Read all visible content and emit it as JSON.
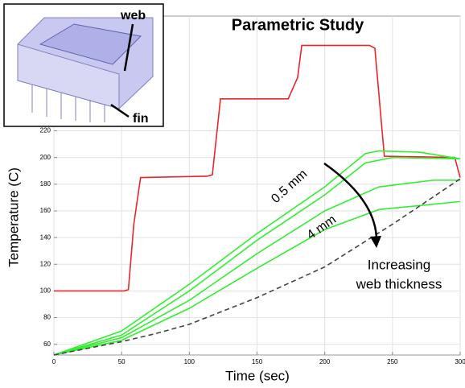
{
  "chart_data": {
    "type": "line",
    "title": "Parametric Study",
    "x_label": "Time (sec)",
    "y_label": "Temperature (C)",
    "xlim": [
      0,
      300
    ],
    "ylim": [
      52,
      306
    ],
    "xticks": [
      0,
      50,
      100,
      150,
      200,
      250,
      300
    ],
    "yticks": [
      60,
      80,
      100,
      120,
      140,
      160,
      180,
      200,
      220
    ],
    "grid": true,
    "series": [
      {
        "color": "#e8262b",
        "x": [
          0,
          52,
          55,
          59,
          64,
          113,
          117,
          123,
          173,
          180,
          183,
          233,
          237,
          244,
          296,
          300
        ],
        "values": [
          100,
          100,
          101,
          150,
          185,
          186,
          187,
          244,
          244,
          260,
          284,
          284,
          282,
          201,
          200,
          185
        ]
      },
      {
        "color": "#33ee33",
        "x": [
          0,
          50,
          100,
          150,
          200,
          230,
          240,
          270,
          300
        ],
        "values": [
          52,
          70,
          105,
          143,
          178,
          203,
          205,
          204,
          199
        ]
      },
      {
        "color": "#33ee33",
        "x": [
          0,
          50,
          100,
          150,
          200,
          230,
          250,
          300
        ],
        "values": [
          52,
          67,
          100,
          138,
          172,
          196,
          200,
          199
        ]
      },
      {
        "color": "#33ee33",
        "x": [
          0,
          50,
          100,
          150,
          200,
          240,
          280,
          300
        ],
        "values": [
          52,
          65,
          93,
          128,
          160,
          178,
          183,
          183
        ]
      },
      {
        "color": "#33ee33",
        "x": [
          0,
          50,
          100,
          150,
          200,
          240,
          300
        ],
        "values": [
          52,
          63,
          87,
          117,
          146,
          161,
          167
        ]
      },
      {
        "color": "#444444",
        "dashed": true,
        "x": [
          0,
          50,
          75,
          100,
          150,
          200,
          250,
          300
        ],
        "values": [
          52,
          62,
          68,
          75,
          95,
          118,
          150,
          184
        ]
      }
    ],
    "annotations": [
      "0.5 mm",
      "4 mm",
      "Increasing",
      "web thickness",
      "web",
      "fin"
    ]
  }
}
